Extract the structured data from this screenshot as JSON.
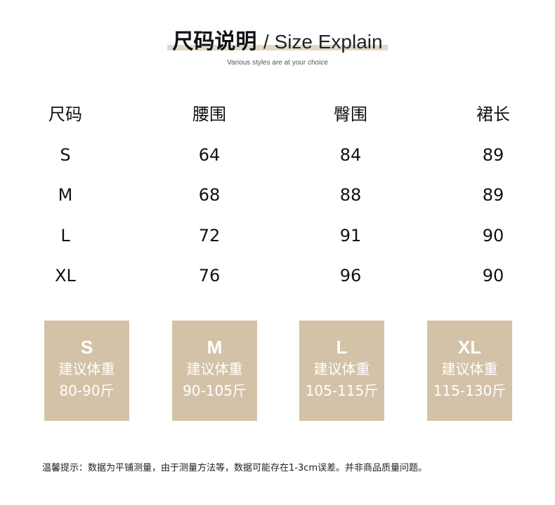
{
  "header": {
    "title_zh": "尺码说明",
    "title_en": "/ Size Explain",
    "subtitle": "Various styles are at your choice"
  },
  "table": {
    "columns": [
      "尺码",
      "腰围",
      "臀围",
      "裙长"
    ],
    "rows": [
      [
        "S",
        "64",
        "84",
        "89"
      ],
      [
        "M",
        "68",
        "88",
        "89"
      ],
      [
        "L",
        "72",
        "91",
        "90"
      ],
      [
        "XL",
        "76",
        "96",
        "90"
      ]
    ]
  },
  "weight_cards": [
    {
      "size": "S",
      "label": "建议体重",
      "range": "80-90斤"
    },
    {
      "size": "M",
      "label": "建议体重",
      "range": "90-105斤"
    },
    {
      "size": "L",
      "label": "建议体重",
      "range": "105-115斤"
    },
    {
      "size": "XL",
      "label": "建议体重",
      "range": "115-130斤"
    }
  ],
  "note": "温馨提示：数据为平铺测量，由于测量方法等，数据可能存在1-3cm误差。并非商品质量问题。",
  "colors": {
    "card_bg": "#d3c2a8",
    "title_underline": "#e3d8c8"
  }
}
